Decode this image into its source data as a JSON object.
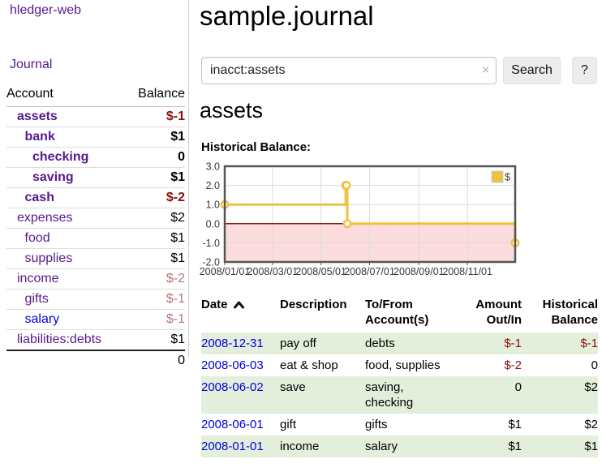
{
  "colors": {
    "link_purple": "#551a8b",
    "link_blue": "#0000e0",
    "negative_strong": "#8b0f0f",
    "negative_muted": "#b97676",
    "row_green": "#e3efdb",
    "chart_gold": "#edc240",
    "chart_negative_region": "#fcdcdc",
    "chart_zero_line": "#8b1a1a",
    "chart_border": "#545454"
  },
  "sidebar": {
    "app_title": "hledger-web",
    "nav_journal": "Journal",
    "accounts_table": {
      "headers": {
        "account": "Account",
        "balance": "Balance"
      },
      "rows": [
        {
          "name": "assets",
          "balance": "$-1",
          "indent": 1,
          "bold": true,
          "link_color": "purple",
          "balance_color": "negative-strong"
        },
        {
          "name": "bank",
          "balance": "$1",
          "indent": 2,
          "bold": true,
          "link_color": "purple",
          "balance_color": "normal"
        },
        {
          "name": "checking",
          "balance": "0",
          "indent": 3,
          "bold": true,
          "link_color": "purple",
          "balance_color": "normal"
        },
        {
          "name": "saving",
          "balance": "$1",
          "indent": 3,
          "bold": true,
          "link_color": "purple",
          "balance_color": "normal"
        },
        {
          "name": "cash",
          "balance": "$-2",
          "indent": 2,
          "bold": true,
          "link_color": "purple",
          "balance_color": "negative-strong"
        },
        {
          "name": "expenses",
          "balance": "$2",
          "indent": 1,
          "bold": false,
          "link_color": "purple",
          "balance_color": "normal"
        },
        {
          "name": "food",
          "balance": "$1",
          "indent": 2,
          "bold": false,
          "link_color": "purple",
          "balance_color": "normal"
        },
        {
          "name": "supplies",
          "balance": "$1",
          "indent": 2,
          "bold": false,
          "link_color": "purple",
          "balance_color": "normal"
        },
        {
          "name": "income",
          "balance": "$-2",
          "indent": 1,
          "bold": false,
          "link_color": "purple",
          "balance_color": "negative-muted"
        },
        {
          "name": "gifts",
          "balance": "$-1",
          "indent": 2,
          "bold": false,
          "link_color": "purple",
          "balance_color": "negative-muted"
        },
        {
          "name": "salary",
          "balance": "$-1",
          "indent": 2,
          "bold": false,
          "link_color": "blue",
          "balance_color": "negative-muted"
        },
        {
          "name": "liabilities:debts",
          "balance": "$1",
          "indent": 1,
          "bold": false,
          "link_color": "purple",
          "balance_color": "normal"
        }
      ],
      "total": "0"
    }
  },
  "main": {
    "title": "sample.journal",
    "search": {
      "value": "inacct:assets",
      "clear_icon": "×",
      "button_label": "Search",
      "help_label": "?"
    },
    "account_heading": "assets",
    "chart_heading": "Historical Balance:"
  },
  "chart_data": {
    "type": "line",
    "title": "Historical Balance",
    "step": true,
    "series": [
      {
        "name": "$",
        "color": "#edc240",
        "points": [
          {
            "x": "2008-01-01",
            "y": 1
          },
          {
            "x": "2008-06-01",
            "y": 2
          },
          {
            "x": "2008-06-02",
            "y": 2
          },
          {
            "x": "2008-06-03",
            "y": 0
          },
          {
            "x": "2008-12-31",
            "y": -1
          }
        ]
      }
    ],
    "x_axis": {
      "min": "2008-01-01",
      "max": "2008-12-31",
      "tick_dates": [
        "2008-01-01",
        "2008-03-01",
        "2008-05-01",
        "2008-07-01",
        "2008-09-01",
        "2008-11-01"
      ],
      "tick_labels": [
        "2008/01/01",
        "2008/03/01",
        "2008/05/01",
        "2008/07/01",
        "2008/09/01",
        "2008/11/01"
      ]
    },
    "y_axis": {
      "min": -2,
      "max": 3,
      "ticks": [
        3.0,
        2.0,
        1.0,
        0.0,
        -1.0,
        -2.0
      ]
    },
    "legend": {
      "label": "$",
      "swatch_color": "#edc240",
      "position": "top-right"
    },
    "grid": true,
    "negative_region_color": "#fcdcdc",
    "zero_line_color": "#8b1a1a"
  },
  "transactions": {
    "headers": {
      "date": "Date",
      "description": "Description",
      "tofrom": "To/From Account(s)",
      "amount": "Amount Out/In",
      "historical": "Historical Balance"
    },
    "rows": [
      {
        "date": "2008-12-31",
        "description": "pay off",
        "accounts": "debts",
        "amount": "$-1",
        "balance": "$-1",
        "amount_negative": true,
        "balance_negative": true
      },
      {
        "date": "2008-06-03",
        "description": "eat & shop",
        "accounts": "food, supplies",
        "amount": "$-2",
        "balance": "0",
        "amount_negative": true,
        "balance_negative": false
      },
      {
        "date": "2008-06-02",
        "description": "save",
        "accounts": "saving, checking",
        "amount": "0",
        "balance": "$2",
        "amount_negative": false,
        "balance_negative": false
      },
      {
        "date": "2008-06-01",
        "description": "gift",
        "accounts": "gifts",
        "amount": "$1",
        "balance": "$2",
        "amount_negative": false,
        "balance_negative": false
      },
      {
        "date": "2008-01-01",
        "description": "income",
        "accounts": "salary",
        "amount": "$1",
        "balance": "$1",
        "amount_negative": false,
        "balance_negative": false
      }
    ]
  }
}
